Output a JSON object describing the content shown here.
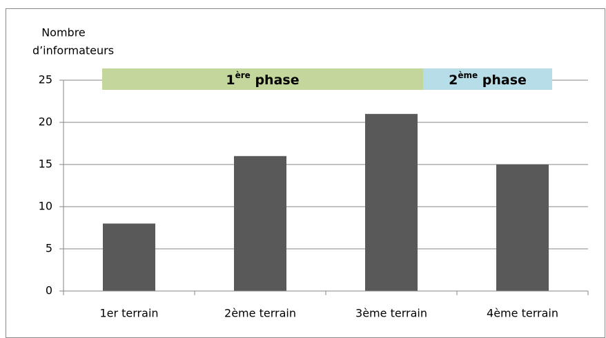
{
  "chart_data": {
    "type": "bar",
    "ylabel_lines": [
      "Nombre",
      "d’informateurs"
    ],
    "categories": [
      "1er terrain",
      "2ème terrain",
      "3ème terrain",
      "4ème terrain"
    ],
    "values": [
      8,
      16,
      21,
      15
    ],
    "color": "#595959",
    "ylim": [
      0,
      25
    ],
    "yticks": [
      0,
      5,
      10,
      15,
      20,
      25
    ],
    "grid": true,
    "phases": [
      {
        "prefix": "1",
        "sup": "ère",
        "rest": " phase",
        "color": "#c3d69b"
      },
      {
        "prefix": "2",
        "sup": "ème",
        "rest": " phase",
        "color": "#b7dde8"
      }
    ]
  }
}
